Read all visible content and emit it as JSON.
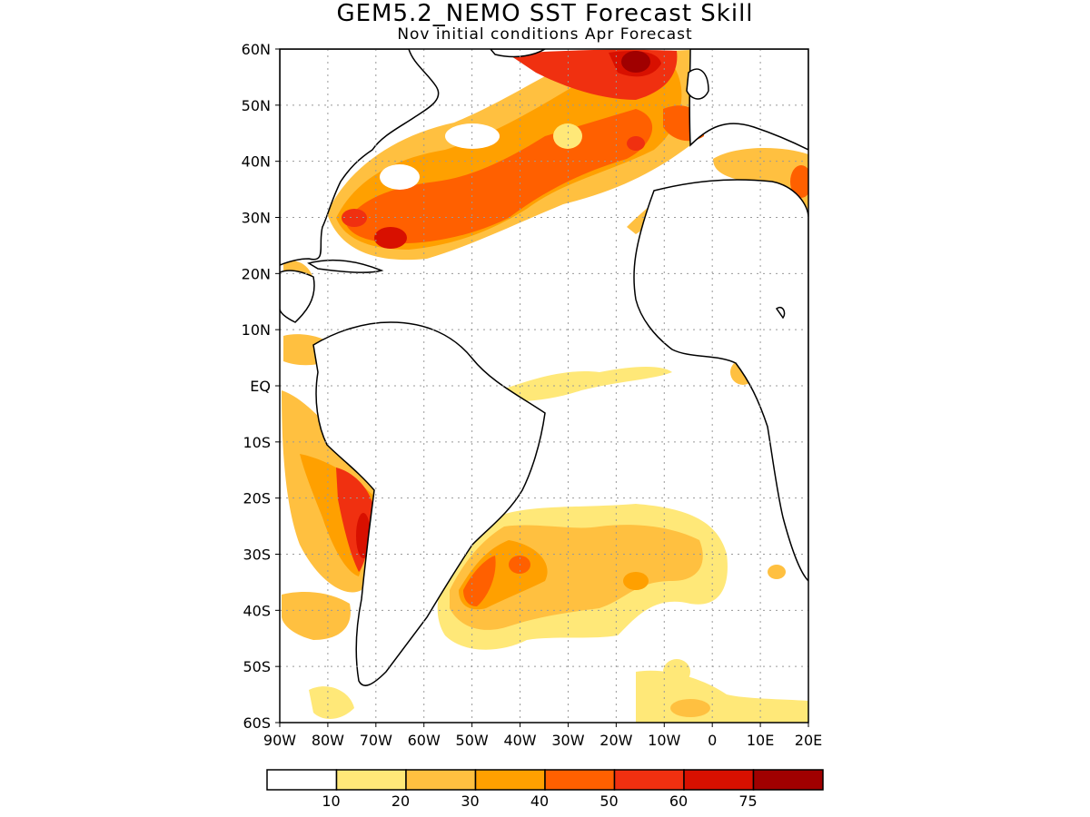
{
  "header": {
    "title": "GEM5.2_NEMO SST Forecast Skill",
    "subtitle": "Nov initial conditions  Apr Forecast"
  },
  "map": {
    "lon_range": [
      -90,
      20
    ],
    "lat_range": [
      -60,
      60
    ],
    "lat_ticks": [
      "60N",
      "50N",
      "40N",
      "30N",
      "20N",
      "10N",
      "EQ",
      "10S",
      "20S",
      "30S",
      "40S",
      "50S",
      "60S"
    ],
    "lon_ticks": [
      "90W",
      "80W",
      "70W",
      "60W",
      "50W",
      "40W",
      "30W",
      "20W",
      "10W",
      "0",
      "10E",
      "20E"
    ]
  },
  "legend": {
    "colors": [
      "#ffffff",
      "#ffe878",
      "#ffc040",
      "#ffa000",
      "#ff6000",
      "#f03010",
      "#d81000",
      "#a00000"
    ],
    "labels": [
      "10",
      "20",
      "30",
      "40",
      "50",
      "60",
      "75"
    ]
  }
}
